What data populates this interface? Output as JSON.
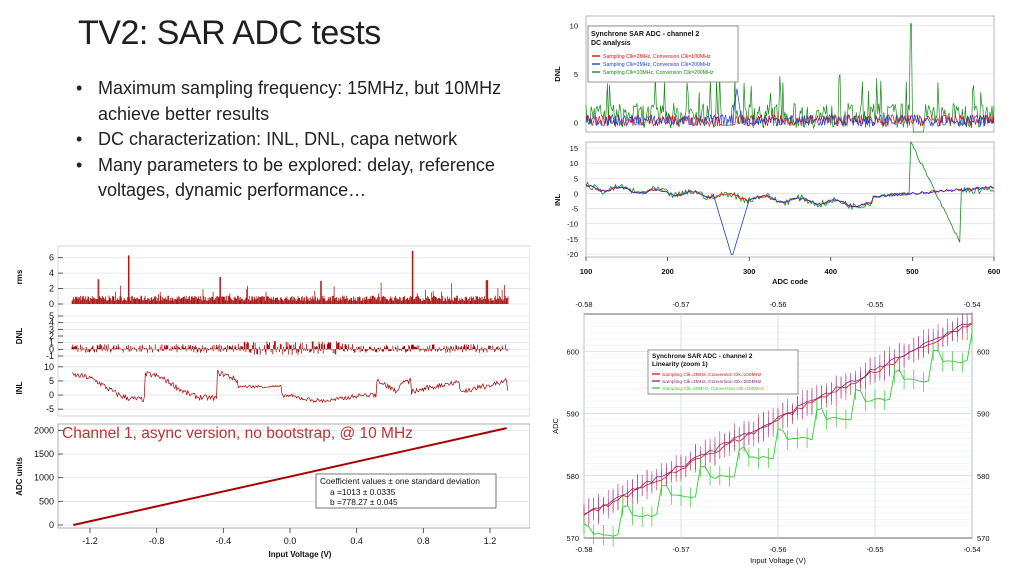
{
  "slide": {
    "title": "TV2: SAR ADC tests",
    "bullets": [
      "Maximum sampling frequency: 15MHz, but 10MHz achieve better results",
      "DC characterization: INL, DNL, capa network",
      "Many parameters to be explored: delay, reference voltages, dynamic performance…"
    ]
  },
  "colors": {
    "red": "#e01010",
    "blue": "#1f3fd0",
    "green": "#1a8a1a",
    "darkred": "#a50000",
    "purple": "#8a2080",
    "fitgreen": "#33cc33"
  },
  "chart_data": [
    {
      "id": "ch1",
      "type": "line",
      "title": "Channel 1, async version, no bootstrap, @ 10 MHz",
      "panels": [
        {
          "ylabel": "rms",
          "yticks": [
            0,
            2,
            4,
            6
          ],
          "ylim": [
            0,
            7
          ],
          "spikes": [
            [
              0.13,
              6.3
            ],
            [
              0.78,
              6.9
            ],
            [
              0.34,
              3.5
            ],
            [
              0.57,
              3.0
            ],
            [
              0.06,
              3.2
            ],
            [
              0.95,
              3.1
            ]
          ]
        },
        {
          "ylabel": "DNL",
          "yticks": [
            -1,
            0,
            1,
            2,
            3,
            4,
            5
          ],
          "ylim": [
            -1,
            5
          ]
        },
        {
          "ylabel": "INL",
          "yticks": [
            -5,
            0,
            5,
            10
          ],
          "ylim": [
            -6,
            11
          ]
        },
        {
          "ylabel": "ADC units",
          "yticks": [
            0,
            500,
            1000,
            1500,
            2000
          ],
          "ylim": [
            0,
            2050
          ],
          "line": {
            "x0": -1.3,
            "y0": 0,
            "x1": 1.3,
            "y1": 2047
          }
        }
      ],
      "xticks": [
        -1.2,
        -0.8,
        -0.4,
        0.0,
        0.4,
        0.8,
        1.2
      ],
      "xlim": [
        -1.32,
        1.32
      ],
      "xlabel": "Input Voltage (V)",
      "fit_box": {
        "title": "Coefficient values ± one standard deviation",
        "a": "a    =1013 ± 0.0335",
        "b": "b    =778.27 ± 0.045"
      }
    },
    {
      "id": "ch2dc",
      "type": "line",
      "title": "Synchrone SAR ADC - channel 2",
      "subtitle": "DC analysis",
      "series": [
        {
          "name": "Sampling Clk=2MHz, Conversion Clk=100MHz",
          "color": "#e01010"
        },
        {
          "name": "Sampling Clk=2MHz, Conversion Clk=200MHz",
          "color": "#1f3fd0"
        },
        {
          "name": "Sampling Clk=10MHz, Conversion Clk=200MHz",
          "color": "#1a8a1a"
        }
      ],
      "dnl": {
        "ylabel": "DNL",
        "yticks": [
          0,
          5,
          10
        ],
        "ylim": [
          -1,
          11
        ]
      },
      "inl": {
        "ylabel": "INL",
        "yticks": [
          -20,
          -15,
          -10,
          -5,
          0,
          5,
          10,
          15
        ],
        "ylim": [
          -21,
          17
        ]
      },
      "xticks": [
        100,
        200,
        300,
        400,
        500,
        600
      ],
      "xlim": [
        100,
        600
      ],
      "xlabel": "ADC code"
    },
    {
      "id": "ch2lin",
      "type": "line",
      "title": "Synchrone SAR ADC - channel 2",
      "subtitle": "Linearity (zoom 1)",
      "series": [
        {
          "name": "Sampling Clk=2MHz, Conversion Clk=100MHz",
          "color": "#e01010"
        },
        {
          "name": "Sampling Clk=2MHz, Conversion Clk=200MHz",
          "color": "#8a2080"
        },
        {
          "name": "Sampling Clk=10MHz, Conversion Clk=200MHz",
          "color": "#33cc33"
        }
      ],
      "xticks": [
        -0.58,
        -0.57,
        -0.56,
        -0.55,
        -0.54
      ],
      "xlim": [
        -0.58,
        -0.54
      ],
      "yticks": [
        570,
        580,
        590,
        600
      ],
      "ylim": [
        570,
        606
      ],
      "xlabel": "Input Voltage (V)",
      "ylabel": "ADC"
    }
  ]
}
